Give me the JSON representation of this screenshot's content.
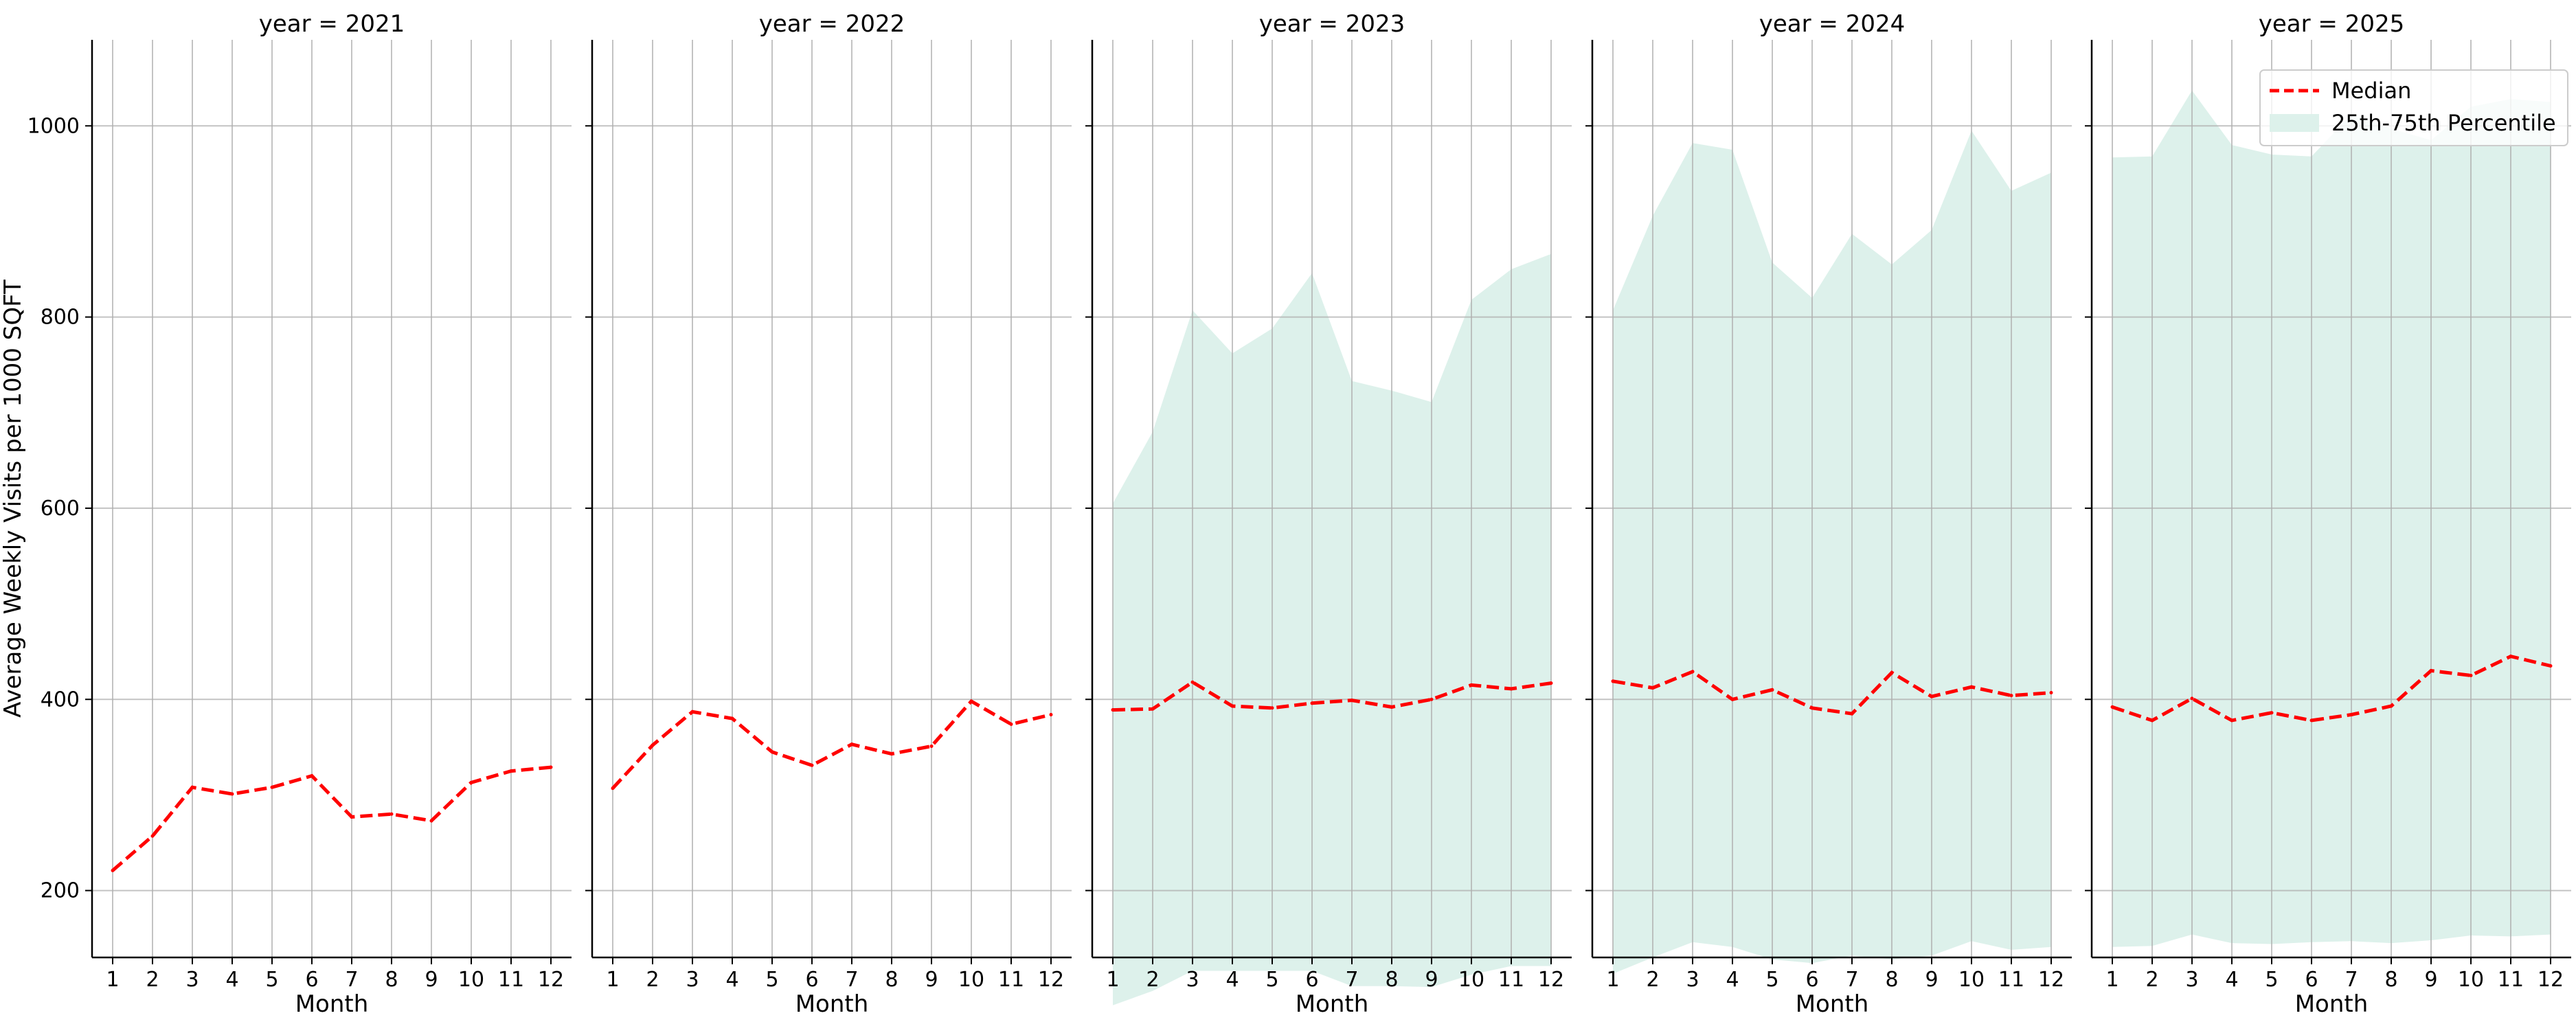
{
  "chart_data": {
    "type": "line",
    "ylabel": "Average Weekly Visits per 1000 SQFT",
    "xlabel": "Month",
    "x": [
      1,
      2,
      3,
      4,
      5,
      6,
      7,
      8,
      9,
      10,
      11,
      12
    ],
    "ylim": [
      130,
      1090
    ],
    "yticks": [
      200,
      400,
      600,
      800,
      1000
    ],
    "grid": true,
    "legend": {
      "placement": "top-right",
      "panel": "year = 2025",
      "entries": [
        {
          "label": "Median",
          "style": "dashed-line"
        },
        {
          "label": "25th-75th Percentile",
          "style": "filled-band"
        }
      ]
    },
    "colors": {
      "median": "#ff0000",
      "band": "#ddf1eb",
      "grid": "#b0b0b0",
      "axis": "#000000"
    },
    "panels": [
      {
        "title": "year = 2021",
        "median": [
          221,
          257,
          308,
          301,
          308,
          320,
          277,
          280,
          273,
          313,
          325,
          329
        ],
        "band_low": null,
        "band_high": null
      },
      {
        "title": "year = 2022",
        "median": [
          307,
          352,
          387,
          380,
          345,
          331,
          353,
          343,
          351,
          398,
          374,
          384
        ],
        "band_low": null,
        "band_high": null
      },
      {
        "title": "year = 2023",
        "median": [
          389,
          390,
          418,
          393,
          391,
          396,
          399,
          392,
          400,
          415,
          411,
          417
        ],
        "band_low": [
          80,
          95,
          116,
          116,
          116,
          116,
          100,
          100,
          99,
          112,
          121,
          121
        ],
        "band_high": [
          605,
          680,
          807,
          762,
          788,
          846,
          733,
          723,
          711,
          818,
          850,
          866
        ]
      },
      {
        "title": "year = 2024",
        "median": [
          419,
          412,
          429,
          400,
          410,
          391,
          385,
          428,
          403,
          413,
          404,
          407
        ],
        "band_low": [
          113,
          130,
          146,
          141,
          128,
          124,
          132,
          128,
          132,
          147,
          138,
          141
        ],
        "band_high": [
          807,
          906,
          982,
          975,
          857,
          820,
          887,
          855,
          891,
          995,
          932,
          951
        ]
      },
      {
        "title": "year = 2025",
        "median": [
          392,
          378,
          401,
          378,
          386,
          378,
          384,
          393,
          430,
          425,
          445,
          435
        ],
        "band_low": [
          141,
          142,
          154,
          145,
          144,
          146,
          147,
          145,
          148,
          153,
          152,
          154
        ],
        "band_high": [
          967,
          968,
          1037,
          980,
          970,
          968,
          1012,
          997,
          985,
          1020,
          1028,
          1025
        ]
      }
    ]
  }
}
